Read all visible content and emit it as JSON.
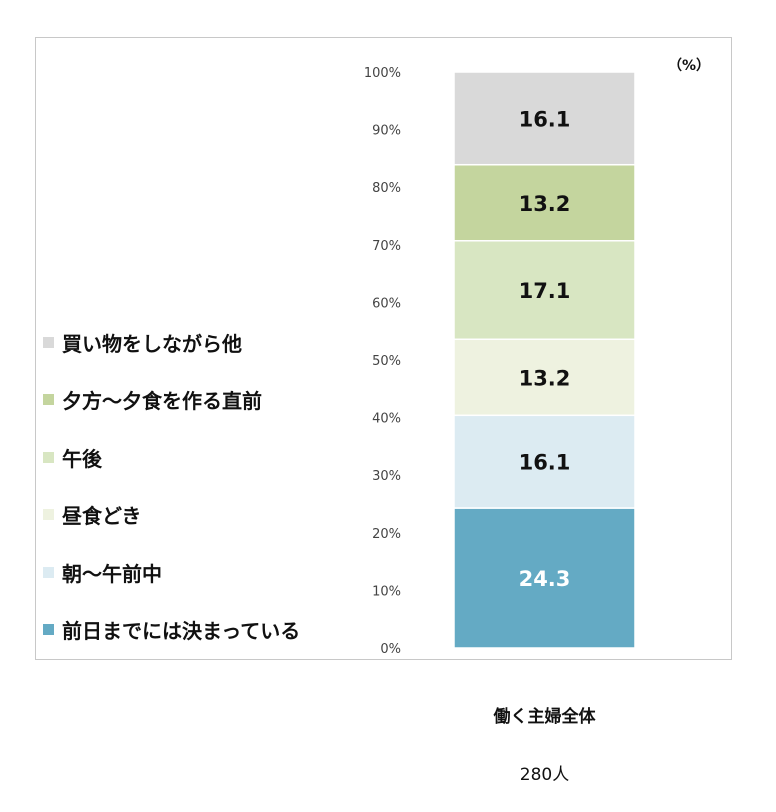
{
  "chart_data": {
    "type": "bar",
    "stacked": true,
    "unit": "（%）",
    "categories": [
      "働く主婦全体"
    ],
    "totals": [
      "280人"
    ],
    "ylim": [
      0,
      100
    ],
    "yticks": [
      "0%",
      "10%",
      "20%",
      "30%",
      "40%",
      "50%",
      "60%",
      "70%",
      "80%",
      "90%",
      "100%"
    ],
    "grid": false,
    "legend_position": "left",
    "series": [
      {
        "name": "前日までには決まっている",
        "values": [
          24.3
        ],
        "color": "#64aac4",
        "label_color": "#ffffff"
      },
      {
        "name": "朝～午前中",
        "values": [
          16.1
        ],
        "color": "#dcebf2",
        "label_color": "#111111"
      },
      {
        "name": "昼食どき",
        "values": [
          13.2
        ],
        "color": "#eef2e0",
        "label_color": "#111111"
      },
      {
        "name": "午後",
        "values": [
          17.1
        ],
        "color": "#d8e6c2",
        "label_color": "#111111"
      },
      {
        "name": "夕方～夕食を作る直前",
        "values": [
          13.2
        ],
        "color": "#c4d59e",
        "label_color": "#111111"
      },
      {
        "name": "買い物をしながら他",
        "values": [
          16.1
        ],
        "color": "#d9d9d9",
        "label_color": "#111111"
      }
    ]
  }
}
